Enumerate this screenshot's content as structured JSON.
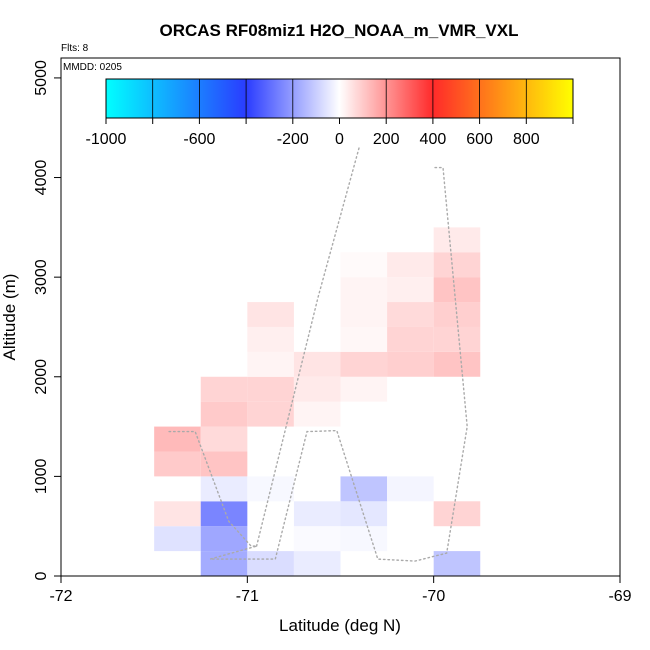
{
  "chart_data": {
    "type": "heatmap",
    "title": "ORCAS RF08miz1 H2O_NOAA_m_VMR_VXL",
    "flights_label": "Flts: 8",
    "date_label": "MMDD: 0205",
    "xlabel": "Latitude (deg N)",
    "ylabel": "Altitude (m)",
    "xlim": [
      -72,
      -69
    ],
    "ylim": [
      0,
      5200
    ],
    "x_ticks": [
      "-72",
      "-71",
      "-70",
      "-69"
    ],
    "y_ticks": [
      "0",
      "1000",
      "2000",
      "3000",
      "4000",
      "5000"
    ],
    "colorbar": {
      "range": [
        -1000,
        1000
      ],
      "tick_labels": [
        "-1000",
        "-600",
        "-200",
        "0",
        "200",
        "400",
        "600",
        "800"
      ],
      "tick_values": [
        -1000,
        -600,
        -200,
        0,
        200,
        400,
        600,
        800
      ]
    },
    "cell_size": {
      "dx": 0.25,
      "dy": 250
    },
    "cells": [
      {
        "x": -71.5,
        "y": 250,
        "v": -60
      },
      {
        "x": -71.5,
        "y": 500,
        "v": 50
      },
      {
        "x": -71.5,
        "y": 1000,
        "v": 100
      },
      {
        "x": -71.5,
        "y": 1250,
        "v": 130
      },
      {
        "x": -71.25,
        "y": 0,
        "v": -170
      },
      {
        "x": -71.25,
        "y": 250,
        "v": -180
      },
      {
        "x": -71.25,
        "y": 500,
        "v": -250
      },
      {
        "x": -71.25,
        "y": 750,
        "v": -40
      },
      {
        "x": -71.25,
        "y": 1000,
        "v": 110
      },
      {
        "x": -71.25,
        "y": 1250,
        "v": 70
      },
      {
        "x": -71.25,
        "y": 1500,
        "v": 100
      },
      {
        "x": -71.25,
        "y": 1750,
        "v": 80
      },
      {
        "x": -71.0,
        "y": 0,
        "v": -70
      },
      {
        "x": -71.0,
        "y": 750,
        "v": -15
      },
      {
        "x": -71.0,
        "y": 1500,
        "v": 80
      },
      {
        "x": -71.0,
        "y": 1750,
        "v": 80
      },
      {
        "x": -71.0,
        "y": 2000,
        "v": 20
      },
      {
        "x": -71.0,
        "y": 2250,
        "v": 30
      },
      {
        "x": -71.0,
        "y": 2500,
        "v": 50
      },
      {
        "x": -70.75,
        "y": 0,
        "v": -40
      },
      {
        "x": -70.75,
        "y": 250,
        "v": -10
      },
      {
        "x": -70.75,
        "y": 500,
        "v": -40
      },
      {
        "x": -70.75,
        "y": 1500,
        "v": 20
      },
      {
        "x": -70.75,
        "y": 1750,
        "v": 40
      },
      {
        "x": -70.75,
        "y": 2000,
        "v": 50
      },
      {
        "x": -70.5,
        "y": 250,
        "v": -15
      },
      {
        "x": -70.5,
        "y": 500,
        "v": -50
      },
      {
        "x": -70.5,
        "y": 750,
        "v": -120
      },
      {
        "x": -70.5,
        "y": 1750,
        "v": 20
      },
      {
        "x": -70.5,
        "y": 2000,
        "v": 80
      },
      {
        "x": -70.5,
        "y": 2250,
        "v": 15
      },
      {
        "x": -70.5,
        "y": 2500,
        "v": 20
      },
      {
        "x": -70.5,
        "y": 2750,
        "v": 20
      },
      {
        "x": -70.5,
        "y": 3000,
        "v": 10
      },
      {
        "x": -70.25,
        "y": 750,
        "v": -20
      },
      {
        "x": -70.25,
        "y": 2000,
        "v": 90
      },
      {
        "x": -70.25,
        "y": 2250,
        "v": 80
      },
      {
        "x": -70.25,
        "y": 2500,
        "v": 70
      },
      {
        "x": -70.25,
        "y": 2750,
        "v": 30
      },
      {
        "x": -70.25,
        "y": 3000,
        "v": 40
      },
      {
        "x": -70.0,
        "y": 0,
        "v": -120
      },
      {
        "x": -70.0,
        "y": 500,
        "v": 80
      },
      {
        "x": -70.0,
        "y": 2000,
        "v": 110
      },
      {
        "x": -70.0,
        "y": 2250,
        "v": 80
      },
      {
        "x": -70.0,
        "y": 2500,
        "v": 90
      },
      {
        "x": -70.0,
        "y": 2750,
        "v": 110
      },
      {
        "x": -70.0,
        "y": 3000,
        "v": 80
      },
      {
        "x": -70.0,
        "y": 3250,
        "v": 40
      }
    ],
    "flight_track": [
      {
        "lat": -71.42,
        "alt": 1450
      },
      {
        "lat": -71.28,
        "alt": 1450
      },
      {
        "lat": -71.1,
        "alt": 550
      },
      {
        "lat": -70.98,
        "alt": 300
      },
      {
        "lat": -70.95,
        "alt": 300
      },
      {
        "lat": -71.2,
        "alt": 170
      },
      {
        "lat": -70.85,
        "alt": 170
      },
      {
        "lat": -70.68,
        "alt": 1450
      },
      {
        "lat": -70.52,
        "alt": 1460
      },
      {
        "lat": -70.3,
        "alt": 170
      },
      {
        "lat": -70.1,
        "alt": 150
      },
      {
        "lat": -69.93,
        "alt": 230
      },
      {
        "lat": -69.82,
        "alt": 1500
      },
      {
        "lat": -69.95,
        "alt": 4100
      },
      {
        "lat": -70.0,
        "alt": 4100
      }
    ],
    "flight_track_2": [
      {
        "lat": -70.95,
        "alt": 300
      },
      {
        "lat": -70.62,
        "alt": 2800
      },
      {
        "lat": -70.4,
        "alt": 4300
      }
    ]
  }
}
